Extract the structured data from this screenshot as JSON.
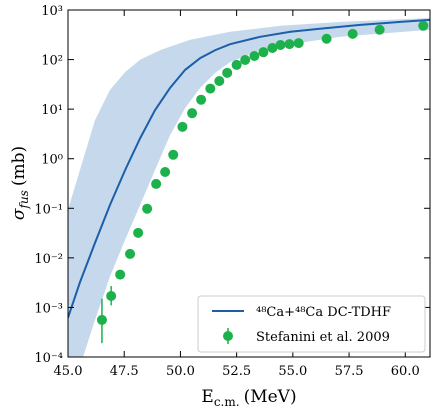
{
  "chart_data": {
    "type": "log-band-scatter",
    "x_label": {
      "main": "E",
      "sub": "c.m.",
      "unit": "(MeV)"
    },
    "y_label": {
      "main": "σ",
      "sub": "fus",
      "unit": "(mb)"
    },
    "xlim": [
      45,
      61.1
    ],
    "ylim": [
      0.0001,
      1000
    ],
    "log_y": true,
    "xticks": [
      {
        "value": 45,
        "label": "45.0"
      },
      47.5,
      {
        "value": 50,
        "label": "50.0"
      },
      52.5,
      {
        "value": 55,
        "label": "55.0"
      },
      57.5,
      {
        "value": 60,
        "label": "60.0"
      }
    ],
    "yticks": [
      {
        "value": 0.0001,
        "label": "10⁻⁴"
      },
      {
        "value": 0.001,
        "label": "10⁻³"
      },
      {
        "value": 0.01,
        "label": "10⁻²"
      },
      {
        "value": 0.1,
        "label": "10⁻¹"
      },
      {
        "value": 1,
        "label": "10⁰"
      },
      {
        "value": 10,
        "label": "10¹"
      },
      {
        "value": 100,
        "label": "10²"
      },
      {
        "value": 1000,
        "label": "10³"
      }
    ],
    "legend": "lower right",
    "band": {
      "color": "#c6d9ec",
      "upper": {
        "x": [
          45,
          45.53,
          46.2,
          46.87,
          47.54,
          48.21,
          49.1,
          50.43,
          52.21,
          54.45,
          57.12,
          61.1
        ],
        "values": [
          0.093,
          0.59,
          6.0,
          24.5,
          56,
          100,
          155,
          251,
          363,
          479,
          575,
          690
        ]
      },
      "lower": {
        "x": [
          45.67,
          46.2,
          46.87,
          47.54,
          48.21,
          48.87,
          49.54,
          50.21,
          50.88,
          51.55,
          52.21,
          53.55,
          54.89,
          57.12,
          61.1
        ],
        "values": [
          0.0001,
          0.00056,
          0.0042,
          0.023,
          0.117,
          0.59,
          3.0,
          10.5,
          27,
          54,
          89,
          155,
          204,
          288,
          398
        ]
      }
    },
    "series": [
      {
        "name": "⁴⁸Ca+⁴⁸Ca DC-TDHF",
        "kind": "line",
        "color": "#1c5fa8",
        "x": [
          45,
          45.53,
          46.2,
          46.87,
          47.54,
          48.21,
          48.87,
          49.54,
          50.21,
          50.88,
          51.55,
          52.21,
          53.55,
          54.89,
          56.2,
          58.0,
          59.79,
          61.1
        ],
        "values": [
          0.00062,
          0.0032,
          0.02,
          0.117,
          0.59,
          2.6,
          9.5,
          27,
          62,
          107,
          155,
          204,
          288,
          363,
          417,
          500,
          575,
          631
        ]
      },
      {
        "name": "Stefanini et al. 2009",
        "kind": "scatter",
        "color": "#1db14b",
        "x": [
          46.51,
          46.92,
          47.32,
          47.76,
          48.12,
          48.52,
          48.92,
          49.32,
          49.68,
          50.09,
          50.52,
          50.92,
          51.33,
          51.73,
          52.08,
          52.5,
          52.88,
          53.29,
          53.69,
          54.09,
          54.45,
          54.85,
          55.26,
          56.5,
          57.66,
          58.86,
          60.8
        ],
        "values": [
          0.00056,
          0.0017,
          0.0046,
          0.012,
          0.032,
          0.098,
          0.31,
          0.54,
          1.2,
          4.4,
          8.3,
          15.5,
          26,
          37,
          54,
          78,
          98,
          118,
          141,
          171,
          197,
          205,
          215,
          263,
          330,
          400,
          480
        ],
        "err_low": [
          0.00019,
          0.0011,
          null,
          null,
          null,
          null,
          null,
          null,
          null,
          null,
          null,
          null,
          null,
          null,
          null,
          null,
          null,
          null,
          null,
          null,
          null,
          null,
          null,
          null,
          null,
          null,
          null
        ],
        "err_high": [
          0.0015,
          0.0027,
          null,
          null,
          null,
          null,
          null,
          null,
          null,
          null,
          null,
          null,
          null,
          null,
          null,
          null,
          null,
          null,
          null,
          null,
          null,
          null,
          null,
          null,
          null,
          null,
          null
        ]
      }
    ]
  }
}
